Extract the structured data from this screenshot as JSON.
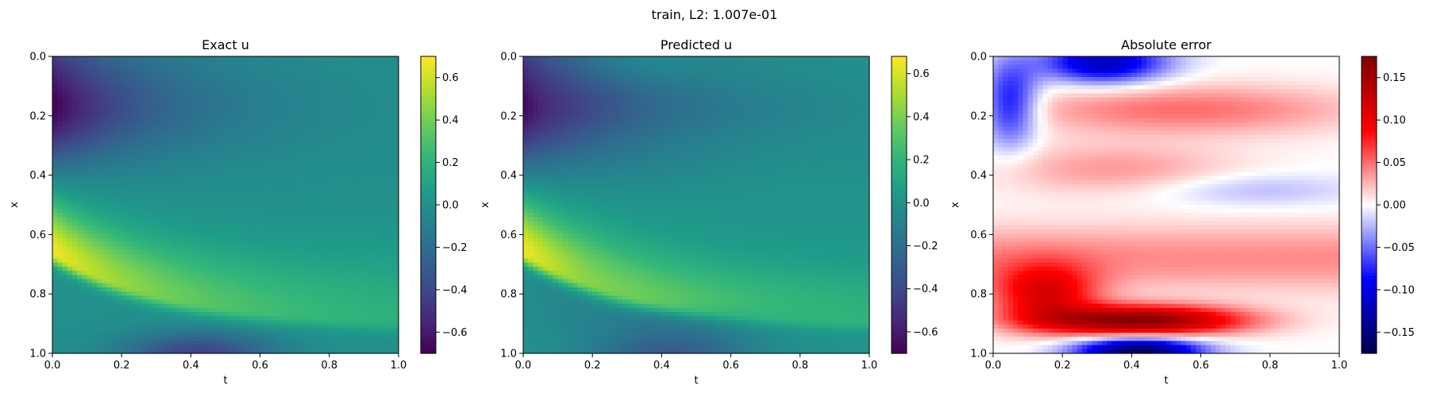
{
  "figure": {
    "suptitle": "train, L2: 1.007e-01"
  },
  "chart_data": [
    {
      "type": "heatmap",
      "title": "Exact u",
      "xlabel": "t",
      "ylabel": "x",
      "xlim": [
        0,
        1
      ],
      "ylim": [
        1,
        0
      ],
      "xticks": [
        "0.0",
        "0.2",
        "0.4",
        "0.6",
        "0.8",
        "1.0"
      ],
      "yticks": [
        "0.0",
        "0.2",
        "0.4",
        "0.6",
        "0.8",
        "1.0"
      ],
      "colormap": "viridis",
      "colorbar": {
        "min": -0.7,
        "max": 0.7,
        "ticks": [
          -0.6,
          -0.4,
          -0.2,
          0.0,
          0.2,
          0.4,
          0.6
        ],
        "tick_labels": [
          "−0.6",
          "−0.4",
          "−0.2",
          "0.0",
          "0.2",
          "0.4",
          "0.6"
        ]
      },
      "field": "u_exact"
    },
    {
      "type": "heatmap",
      "title": "Predicted u",
      "xlabel": "t",
      "ylabel": "x",
      "xlim": [
        0,
        1
      ],
      "ylim": [
        1,
        0
      ],
      "xticks": [
        "0.0",
        "0.2",
        "0.4",
        "0.6",
        "0.8",
        "1.0"
      ],
      "yticks": [
        "0.0",
        "0.2",
        "0.4",
        "0.6",
        "0.8",
        "1.0"
      ],
      "colormap": "viridis",
      "colorbar": {
        "min": -0.7,
        "max": 0.68,
        "ticks": [
          -0.6,
          -0.4,
          -0.2,
          0.0,
          0.2,
          0.4,
          0.6
        ],
        "tick_labels": [
          "−0.6",
          "−0.4",
          "−0.2",
          "0.0",
          "0.2",
          "0.4",
          "0.6"
        ]
      },
      "field": "u_pred"
    },
    {
      "type": "heatmap",
      "title": "Absolute error",
      "xlabel": "t",
      "ylabel": "x",
      "xlim": [
        0,
        1
      ],
      "ylim": [
        1,
        0
      ],
      "xticks": [
        "0.0",
        "0.2",
        "0.4",
        "0.6",
        "0.8",
        "1.0"
      ],
      "yticks": [
        "0.0",
        "0.2",
        "0.4",
        "0.6",
        "0.8",
        "1.0"
      ],
      "colormap": "seismic",
      "colorbar": {
        "min": -0.175,
        "max": 0.175,
        "ticks": [
          -0.15,
          -0.1,
          -0.05,
          0.0,
          0.05,
          0.1,
          0.15
        ],
        "tick_labels": [
          "−0.15",
          "−0.10",
          "−0.05",
          "0.00",
          "0.05",
          "0.10",
          "0.15"
        ]
      },
      "field": "u_error"
    }
  ]
}
